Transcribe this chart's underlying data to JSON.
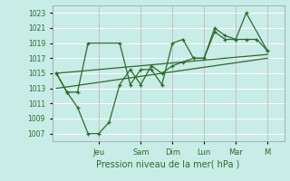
{
  "xlabel": "Pression niveau de la mer( hPa )",
  "bg_color": "#c8ece6",
  "grid_color": "#ffffff",
  "line_color": "#2d6a2d",
  "ylim": [
    1006,
    1024
  ],
  "yticks": [
    1007,
    1009,
    1011,
    1013,
    1015,
    1017,
    1019,
    1021,
    1023
  ],
  "day_labels": [
    "Jeu",
    "Sam",
    "Dim",
    "Lun",
    "Mar",
    "M"
  ],
  "day_positions": [
    2.0,
    4.0,
    5.5,
    7.0,
    8.5,
    10.0
  ],
  "vlines": [
    2.0,
    4.0,
    5.5,
    7.0,
    8.5,
    10.0
  ],
  "series1_x": [
    0,
    0.5,
    1.0,
    1.5,
    3.0,
    3.5,
    4.0,
    4.5,
    5.0,
    5.5,
    6.0,
    6.5,
    7.0,
    7.5,
    8.0,
    8.5,
    9.0,
    10.0
  ],
  "series1_y": [
    1015,
    1012.5,
    1012.5,
    1019,
    1019,
    1013.5,
    1015.5,
    1015.5,
    1013.5,
    1019,
    1019.5,
    1017,
    1017,
    1021,
    1020,
    1019.5,
    1023,
    1018
  ],
  "series2_x": [
    0,
    0.5,
    1.0,
    1.5,
    2.0,
    2.5,
    3.0,
    3.5,
    4.0,
    4.5,
    5.0,
    5.5,
    6.0,
    6.5,
    7.0,
    7.5,
    8.0,
    8.5,
    9.0,
    9.5,
    10.0
  ],
  "series2_y": [
    1015,
    1012.5,
    1010.5,
    1007.0,
    1007.0,
    1008.5,
    1013.5,
    1015.5,
    1013.5,
    1016.0,
    1015.0,
    1016.0,
    1016.5,
    1017.0,
    1017.0,
    1020.5,
    1019.5,
    1019.5,
    1019.5,
    1019.5,
    1018.0
  ],
  "trend1_x": [
    0,
    10.0
  ],
  "trend1_y": [
    1015.0,
    1017.5
  ],
  "trend2_x": [
    0,
    10.0
  ],
  "trend2_y": [
    1013.0,
    1017.0
  ],
  "xlim": [
    -0.2,
    10.8
  ],
  "xlabel_fontsize": 7,
  "ytick_fontsize": 5.5,
  "xtick_fontsize": 6
}
